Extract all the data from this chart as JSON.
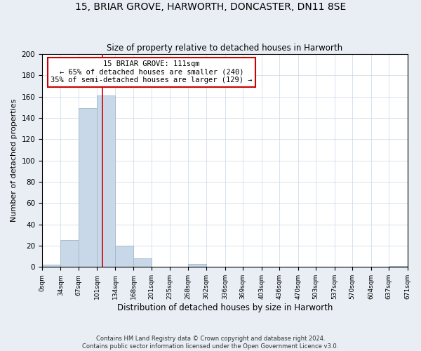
{
  "title": "15, BRIAR GROVE, HARWORTH, DONCASTER, DN11 8SE",
  "subtitle": "Size of property relative to detached houses in Harworth",
  "xlabel": "Distribution of detached houses by size in Harworth",
  "ylabel": "Number of detached properties",
  "bin_edges": [
    0,
    34,
    67,
    101,
    134,
    168,
    201,
    235,
    268,
    302,
    336,
    369,
    403,
    436,
    470,
    503,
    537,
    570,
    604,
    637,
    671
  ],
  "bar_heights": [
    2,
    25,
    149,
    161,
    20,
    8,
    0,
    0,
    3,
    0,
    0,
    0,
    0,
    0,
    0,
    0,
    0,
    0,
    0,
    1
  ],
  "bar_color": "#c8d8e8",
  "bar_edge_color": "#a0b8cc",
  "vline_x": 111,
  "vline_color": "#cc0000",
  "annotation_box_color": "#cc0000",
  "annotation_title": "15 BRIAR GROVE: 111sqm",
  "annotation_line1": "← 65% of detached houses are smaller (240)",
  "annotation_line2": "35% of semi-detached houses are larger (129) →",
  "ylim": [
    0,
    200
  ],
  "yticks": [
    0,
    20,
    40,
    60,
    80,
    100,
    120,
    140,
    160,
    180,
    200
  ],
  "tick_labels": [
    "0sqm",
    "34sqm",
    "67sqm",
    "101sqm",
    "134sqm",
    "168sqm",
    "201sqm",
    "235sqm",
    "268sqm",
    "302sqm",
    "336sqm",
    "369sqm",
    "403sqm",
    "436sqm",
    "470sqm",
    "503sqm",
    "537sqm",
    "570sqm",
    "604sqm",
    "637sqm",
    "671sqm"
  ],
  "footer_line1": "Contains HM Land Registry data © Crown copyright and database right 2024.",
  "footer_line2": "Contains public sector information licensed under the Open Government Licence v3.0.",
  "background_color": "#e8eef4",
  "plot_bg_color": "#ffffff"
}
